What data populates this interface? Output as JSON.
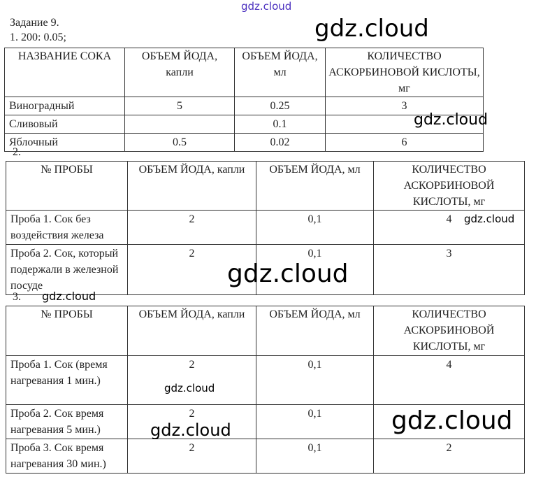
{
  "watermark": "gdz.cloud",
  "title": "Задание 9.",
  "line1": "1. 200: 0.05;",
  "t1": {
    "headers": [
      "НАЗВАНИЕ СОКА",
      "ОБЪЕМ ЙОДА, капли",
      "ОБЪЕМ ЙОДА, мл",
      "КОЛИЧЕСТВО АСКОРБИНОВОЙ КИСЛОТЫ, мг"
    ],
    "rows": [
      [
        "Виноградный",
        "5",
        "0.25",
        "3"
      ],
      [
        "Сливовый",
        "",
        "0.1",
        ""
      ],
      [
        "Яблочный",
        "0.5",
        "0.02",
        "6"
      ]
    ]
  },
  "n2": "2.",
  "t2": {
    "headers": [
      "№ ПРОБЫ",
      "ОБЪЕМ ЙОДА, капли",
      "ОБЪЕМ ЙОДА, мл",
      "КОЛИЧЕСТВО АСКОРБИНОВОЙ КИСЛОТЫ, мг"
    ],
    "rows": [
      [
        "Проба 1. Сок без воздействия железа",
        "2",
        "0,1",
        "4"
      ],
      [
        "Проба 2. Сок, который подержали в железной посуде",
        "2",
        "0,1",
        "3"
      ]
    ]
  },
  "n3": "3.",
  "t3": {
    "headers": [
      "№ ПРОБЫ",
      "ОБЪЕМ ЙОДА, капли",
      "ОБЪЕМ ЙОДА, мл",
      "КОЛИЧЕСТВО АСКОРБИНОВОЙ КИСЛОТЫ, мг"
    ],
    "rows": [
      [
        "Проба 1. Сок (время нагревания 1 мин.)",
        "2",
        "0,1",
        "4"
      ],
      [
        "Проба 2. Сок время нагревания 5 мин.)",
        "2",
        "0,1",
        ""
      ],
      [
        "Проба 3. Сок время нагревания 30 мин.)",
        "2",
        "0,1",
        "2"
      ]
    ]
  }
}
